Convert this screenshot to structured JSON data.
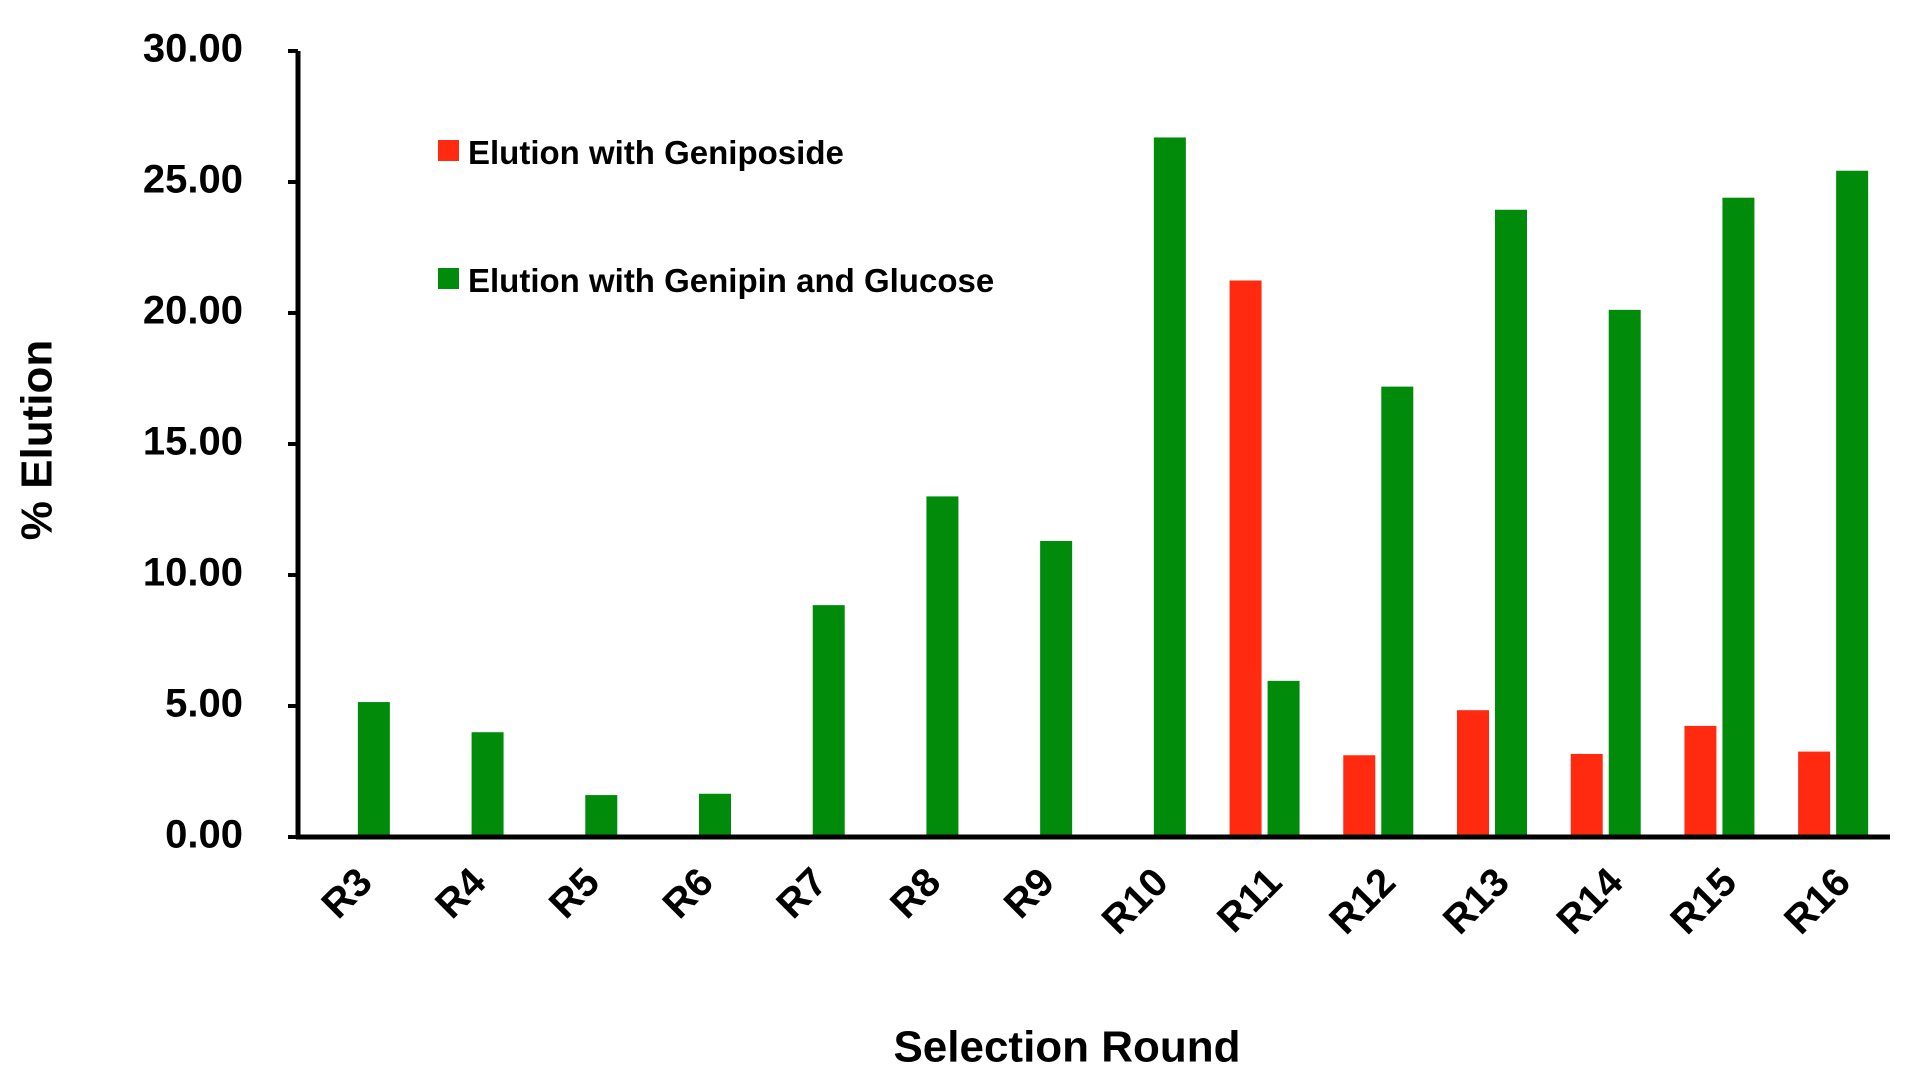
{
  "chart_data": {
    "type": "bar",
    "x_label": "Selection Round",
    "y_label": "% Elution",
    "categories": [
      "R3",
      "R4",
      "R5",
      "R6",
      "R7",
      "R8",
      "R9",
      "R10",
      "R11",
      "R12",
      "R13",
      "R14",
      "R15",
      "R16"
    ],
    "series": [
      {
        "name": "Elution with Geniposide",
        "color": "#ff2a0f",
        "values": [
          null,
          null,
          null,
          null,
          null,
          null,
          null,
          null,
          21.24,
          3.12,
          4.84,
          3.17,
          4.24,
          3.26
        ]
      },
      {
        "name": "Elution with Genipin and Glucose",
        "color": "#008c0a",
        "values": [
          5.15,
          4.0,
          1.6,
          1.65,
          8.85,
          13.0,
          11.3,
          26.7,
          5.96,
          17.19,
          23.94,
          20.12,
          24.4,
          25.43
        ]
      }
    ],
    "ylim": [
      0,
      30
    ],
    "yticks": [
      {
        "value": 0,
        "label": "0.00"
      },
      {
        "value": 5,
        "label": "5.00"
      },
      {
        "value": 10,
        "label": "10.00"
      },
      {
        "value": 15,
        "label": "15.00"
      },
      {
        "value": 20,
        "label": "20.00"
      },
      {
        "value": 25,
        "label": "25.00"
      },
      {
        "value": 30,
        "label": "30.00"
      }
    ],
    "grid": false,
    "legend": "top-left"
  }
}
